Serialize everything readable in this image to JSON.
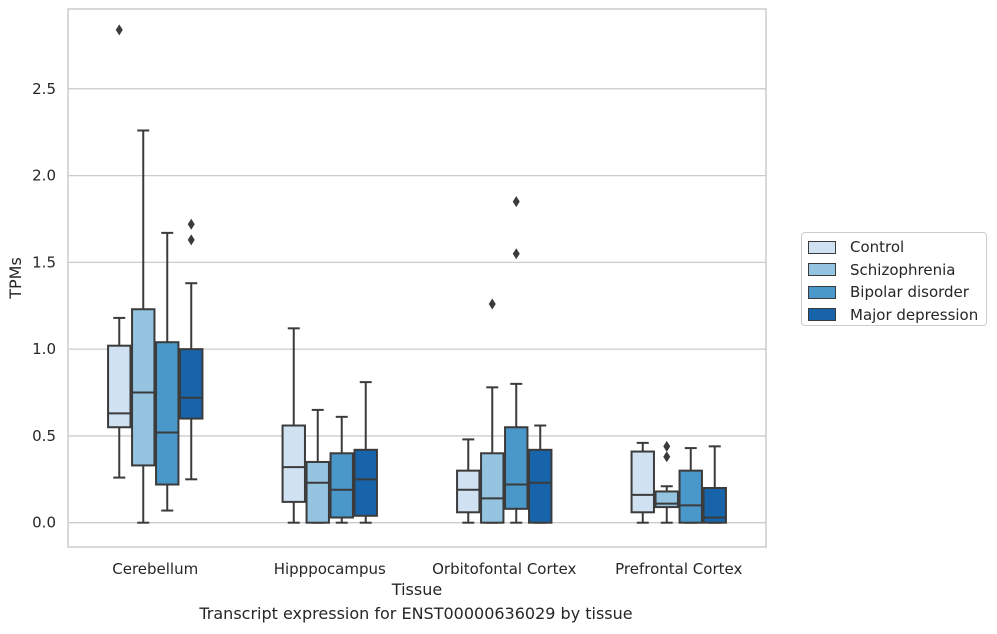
{
  "chart_data": {
    "type": "box",
    "title": "",
    "caption": "Transcript expression for ENST00000636029 by tissue",
    "xlabel": "Tissue",
    "ylabel": "TPMs",
    "ylim": [
      -0.14,
      2.96
    ],
    "yticks": [
      0.0,
      0.5,
      1.0,
      1.5,
      2.0,
      2.5
    ],
    "ytick_labels": [
      "0.0",
      "0.5",
      "1.0",
      "1.5",
      "2.0",
      "2.5"
    ],
    "grid": "horizontal",
    "legend_position": "right",
    "categories": [
      "Cerebellum",
      "Hipppocampus",
      "Orbitofontal Cortex",
      "Prefrontal Cortex"
    ],
    "series": [
      {
        "name": "Control",
        "color": "#d0e1f2",
        "boxes": [
          {
            "whisker_low": 0.26,
            "q1": 0.55,
            "median": 0.63,
            "q3": 1.02,
            "whisker_high": 1.18,
            "outliers": [
              2.84
            ]
          },
          {
            "whisker_low": 0.0,
            "q1": 0.12,
            "median": 0.32,
            "q3": 0.56,
            "whisker_high": 1.12,
            "outliers": []
          },
          {
            "whisker_low": 0.0,
            "q1": 0.06,
            "median": 0.19,
            "q3": 0.3,
            "whisker_high": 0.48,
            "outliers": []
          },
          {
            "whisker_low": 0.0,
            "q1": 0.06,
            "median": 0.16,
            "q3": 0.41,
            "whisker_high": 0.46,
            "outliers": []
          }
        ]
      },
      {
        "name": "Schizophrenia",
        "color": "#94c4df",
        "boxes": [
          {
            "whisker_low": 0.0,
            "q1": 0.33,
            "median": 0.75,
            "q3": 1.23,
            "whisker_high": 2.26,
            "outliers": []
          },
          {
            "whisker_low": 0.0,
            "q1": 0.0,
            "median": 0.23,
            "q3": 0.35,
            "whisker_high": 0.65,
            "outliers": []
          },
          {
            "whisker_low": 0.0,
            "q1": 0.0,
            "median": 0.14,
            "q3": 0.4,
            "whisker_high": 0.78,
            "outliers": [
              1.26
            ]
          },
          {
            "whisker_low": 0.0,
            "q1": 0.09,
            "median": 0.11,
            "q3": 0.18,
            "whisker_high": 0.21,
            "outliers": [
              0.44,
              0.38
            ]
          }
        ]
      },
      {
        "name": "Bipolar disorder",
        "color": "#4a98c9",
        "boxes": [
          {
            "whisker_low": 0.07,
            "q1": 0.22,
            "median": 0.52,
            "q3": 1.04,
            "whisker_high": 1.67,
            "outliers": []
          },
          {
            "whisker_low": 0.0,
            "q1": 0.03,
            "median": 0.19,
            "q3": 0.4,
            "whisker_high": 0.61,
            "outliers": []
          },
          {
            "whisker_low": 0.0,
            "q1": 0.08,
            "median": 0.22,
            "q3": 0.55,
            "whisker_high": 0.8,
            "outliers": [
              1.85,
              1.55
            ]
          },
          {
            "whisker_low": 0.0,
            "q1": 0.0,
            "median": 0.1,
            "q3": 0.3,
            "whisker_high": 0.43,
            "outliers": []
          }
        ]
      },
      {
        "name": "Major depression",
        "color": "#1764ab",
        "boxes": [
          {
            "whisker_low": 0.25,
            "q1": 0.6,
            "median": 0.72,
            "q3": 1.0,
            "whisker_high": 1.38,
            "outliers": [
              1.72,
              1.63
            ]
          },
          {
            "whisker_low": 0.0,
            "q1": 0.04,
            "median": 0.25,
            "q3": 0.42,
            "whisker_high": 0.81,
            "outliers": []
          },
          {
            "whisker_low": 0.0,
            "q1": 0.0,
            "median": 0.23,
            "q3": 0.42,
            "whisker_high": 0.56,
            "outliers": []
          },
          {
            "whisker_low": 0.0,
            "q1": 0.0,
            "median": 0.03,
            "q3": 0.2,
            "whisker_high": 0.44,
            "outliers": []
          }
        ]
      }
    ]
  }
}
